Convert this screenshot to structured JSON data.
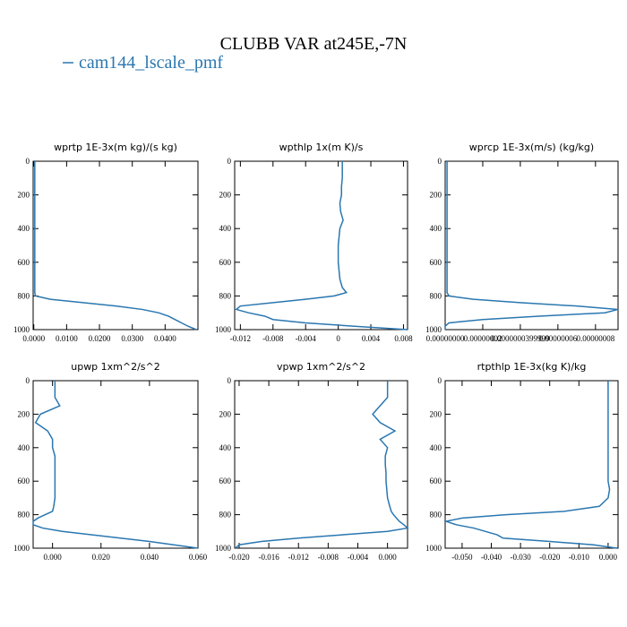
{
  "title": "CLUBB VAR at245E,-7N",
  "chart_data": [
    {
      "type": "line",
      "title": "wprtp  1E-3x(m kg)/(s kg)",
      "y": [
        0,
        50,
        100,
        150,
        200,
        250,
        300,
        350,
        400,
        450,
        500,
        550,
        600,
        650,
        700,
        750,
        780,
        800,
        820,
        840,
        860,
        880,
        900,
        920,
        940,
        960,
        980,
        1000
      ],
      "ylim": [
        1000,
        0
      ],
      "yticks": [
        0,
        200,
        400,
        600,
        800,
        1000
      ],
      "xlim": [
        -0.0002,
        0.05
      ],
      "xticks": [
        {
          "value": 0,
          "label": "0.0000"
        },
        {
          "value": 0.01,
          "label": "0.0100"
        },
        {
          "value": 0.02,
          "label": "0.0200"
        },
        {
          "value": 0.03,
          "label": "0.0300"
        },
        {
          "value": 0.04,
          "label": "0.0400"
        }
      ],
      "series": [
        {
          "name": "cam144_lscale_pmf",
          "color": "#2a77b0",
          "values": [
            0.0003,
            0.0003,
            0.0003,
            0.0003,
            0.0003,
            0.0003,
            0.0003,
            0.0003,
            0.0003,
            0.0003,
            0.0003,
            0.0003,
            0.0003,
            0.0003,
            0.0003,
            0.0003,
            0.0003,
            0.0005,
            0.005,
            0.015,
            0.025,
            0.033,
            0.038,
            0.041,
            0.043,
            0.045,
            0.047,
            0.0495
          ]
        }
      ]
    },
    {
      "type": "line",
      "title": "wpthlp  1x(m K)/s",
      "y": [
        0,
        50,
        100,
        150,
        200,
        250,
        300,
        350,
        400,
        450,
        500,
        550,
        600,
        650,
        700,
        750,
        780,
        800,
        820,
        840,
        860,
        880,
        900,
        920,
        940,
        960,
        980,
        1000
      ],
      "ylim": [
        1000,
        0
      ],
      "yticks": [
        0,
        200,
        400,
        600,
        800,
        1000
      ],
      "xlim": [
        -0.0127,
        0.0085
      ],
      "xticks": [
        -0.012,
        -0.008,
        -0.004,
        0,
        0.004,
        0.008
      ],
      "series": [
        {
          "name": "cam144_lscale_pmf",
          "color": "#2a77b0",
          "values": [
            0.0005,
            0.0005,
            0.0005,
            0.0004,
            0.0004,
            0.0002,
            0.0003,
            0.0006,
            0.0002,
            0.0001,
            0,
            0,
            0,
            0.0001,
            0.0002,
            0.0005,
            0.001,
            -0.0005,
            -0.004,
            -0.008,
            -0.012,
            -0.0125,
            -0.011,
            -0.009,
            -0.008,
            -0.004,
            0.002,
            0.0085
          ]
        }
      ]
    },
    {
      "type": "line",
      "title": "wprcp  1E-3x(m/s) (kg/kg)",
      "y": [
        0,
        50,
        100,
        150,
        200,
        250,
        300,
        350,
        400,
        450,
        500,
        550,
        600,
        650,
        700,
        750,
        780,
        800,
        820,
        840,
        860,
        880,
        900,
        920,
        940,
        960,
        980,
        1000
      ],
      "ylim": [
        1000,
        0
      ],
      "yticks": [
        0,
        200,
        400,
        600,
        800,
        1000
      ],
      "xlim": [
        0,
        9.2e-08
      ],
      "xticks": [
        {
          "value": 0,
          "label": "0.00000000"
        },
        {
          "value": 2e-08,
          "label": "0.00000002"
        },
        {
          "value": 4e-08,
          "label": "0.0000000399999"
        },
        {
          "value": 6e-08,
          "label": "0.00000006"
        },
        {
          "value": 8e-08,
          "label": "0.00000008"
        }
      ],
      "series": [
        {
          "name": "cam144_lscale_pmf",
          "color": "#2a77b0",
          "values": [
            1e-09,
            1e-09,
            1e-09,
            1e-09,
            1e-09,
            1e-09,
            1e-09,
            1e-09,
            1e-09,
            1e-09,
            1e-09,
            1e-09,
            1e-09,
            1e-09,
            1e-09,
            1e-09,
            1e-09,
            2e-09,
            1.5e-08,
            4e-08,
            7e-08,
            9.2e-08,
            8.5e-08,
            5e-08,
            2e-08,
            2e-09,
            0,
            0
          ]
        }
      ]
    },
    {
      "type": "line",
      "title": "upwp  1xm^2/s^2",
      "y": [
        0,
        50,
        100,
        150,
        200,
        250,
        300,
        350,
        400,
        450,
        500,
        550,
        600,
        650,
        700,
        750,
        780,
        800,
        820,
        840,
        860,
        880,
        900,
        920,
        940,
        960,
        980,
        1000
      ],
      "ylim": [
        1000,
        0
      ],
      "yticks": [
        0,
        200,
        400,
        600,
        800,
        1000
      ],
      "xlim": [
        -0.008,
        0.06
      ],
      "xticks": [
        {
          "value": 0,
          "label": "0.000"
        },
        {
          "value": 0.02,
          "label": "0.020"
        },
        {
          "value": 0.04,
          "label": "0.040"
        },
        {
          "value": 0.06,
          "label": "0.060"
        }
      ],
      "series": [
        {
          "name": "cam144_lscale_pmf",
          "color": "#2a77b0",
          "values": [
            0.001,
            0.001,
            0.001,
            0.003,
            -0.005,
            -0.007,
            -0.002,
            0,
            0,
            0.001,
            0.001,
            0.001,
            0.001,
            0.001,
            0.001,
            0.0005,
            0,
            -0.003,
            -0.006,
            -0.008,
            -0.008,
            -0.004,
            0.004,
            0.016,
            0.028,
            0.04,
            0.05,
            0.06
          ]
        }
      ]
    },
    {
      "type": "line",
      "title": "vpwp  1xm^2/s^2",
      "y": [
        0,
        50,
        100,
        150,
        200,
        250,
        300,
        350,
        400,
        450,
        500,
        550,
        600,
        650,
        700,
        750,
        780,
        800,
        820,
        840,
        860,
        880,
        900,
        920,
        940,
        960,
        980,
        1000
      ],
      "ylim": [
        1000,
        0
      ],
      "yticks": [
        0,
        200,
        400,
        600,
        800,
        1000
      ],
      "xlim": [
        -0.0206,
        0.0027
      ],
      "xticks": [
        {
          "value": -0.02,
          "label": "-0.020"
        },
        -0.016,
        -0.012,
        -0.008,
        -0.004,
        {
          "value": 0,
          "label": "0.000"
        }
      ],
      "series": [
        {
          "name": "cam144_lscale_pmf",
          "color": "#2a77b0",
          "values": [
            0,
            0,
            0,
            -0.001,
            -0.002,
            -0.001,
            0.001,
            -0.001,
            0,
            -0.0003,
            -0.0003,
            -0.0002,
            -0.0002,
            -0.0001,
            0,
            0.0003,
            0.0005,
            0.0008,
            0.0012,
            0.0016,
            0.0022,
            0.0027,
            0,
            -0.006,
            -0.012,
            -0.017,
            -0.02,
            -0.0205
          ]
        }
      ]
    },
    {
      "type": "line",
      "title": "rtpthlp  1E-3x(kg K)/kg",
      "y": [
        0,
        50,
        100,
        150,
        200,
        250,
        300,
        350,
        400,
        450,
        500,
        550,
        600,
        650,
        700,
        750,
        780,
        800,
        820,
        840,
        860,
        880,
        900,
        920,
        940,
        960,
        980,
        1000
      ],
      "ylim": [
        1000,
        0
      ],
      "yticks": [
        0,
        200,
        400,
        600,
        800,
        1000
      ],
      "xlim": [
        -0.0558,
        0.0034
      ],
      "xticks": [
        {
          "value": -0.05,
          "label": "-0.050"
        },
        {
          "value": -0.04,
          "label": "-0.040"
        },
        {
          "value": -0.03,
          "label": "-0.030"
        },
        {
          "value": -0.02,
          "label": "-0.020"
        },
        {
          "value": -0.01,
          "label": "-0.010"
        },
        {
          "value": 0,
          "label": "0.000"
        }
      ],
      "series": [
        {
          "name": "cam144_lscale_pmf",
          "color": "#2a77b0",
          "values": [
            0,
            0,
            0,
            0,
            0,
            0,
            0,
            0,
            0,
            0,
            0,
            0,
            0,
            0.0005,
            0,
            -0.003,
            -0.015,
            -0.035,
            -0.05,
            -0.0555,
            -0.052,
            -0.046,
            -0.042,
            -0.038,
            -0.036,
            -0.02,
            -0.005,
            0.003
          ]
        }
      ]
    }
  ]
}
